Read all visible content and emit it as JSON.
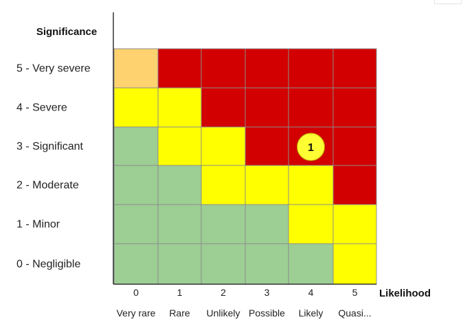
{
  "chart_data": {
    "type": "heatmap",
    "ylabel": "Significance",
    "xlabel": "Likelihood",
    "x_ticks": [
      "0",
      "1",
      "2",
      "3",
      "4",
      "5"
    ],
    "x_labels": [
      "Very rare",
      "Rare",
      "Unlikely",
      "Possible",
      "Likely",
      "Quasi..."
    ],
    "y_labels": [
      "0 - Negligible",
      "1 - Minor",
      "2 - Moderate",
      "3 - Significant",
      "4 - Severe",
      "5 - Very severe"
    ],
    "colors": {
      "green": "#9dce94",
      "yellow": "#ffff00",
      "orange": "#fed26f",
      "red": "#d20000",
      "grid": "#8c8c8c",
      "marker_fill": "#ffff33",
      "marker_stroke": "#b9a300"
    },
    "cell_colors": [
      [
        "green",
        "green",
        "green",
        "green",
        "green",
        "yellow"
      ],
      [
        "green",
        "green",
        "green",
        "green",
        "yellow",
        "yellow"
      ],
      [
        "green",
        "green",
        "yellow",
        "yellow",
        "yellow",
        "red"
      ],
      [
        "green",
        "yellow",
        "yellow",
        "red",
        "red",
        "red"
      ],
      [
        "yellow",
        "yellow",
        "red",
        "red",
        "red",
        "red"
      ],
      [
        "orange",
        "red",
        "red",
        "red",
        "red",
        "red"
      ]
    ],
    "annotations": [
      {
        "label": "1",
        "likelihood": 4,
        "significance": 3
      }
    ],
    "grid": true
  }
}
